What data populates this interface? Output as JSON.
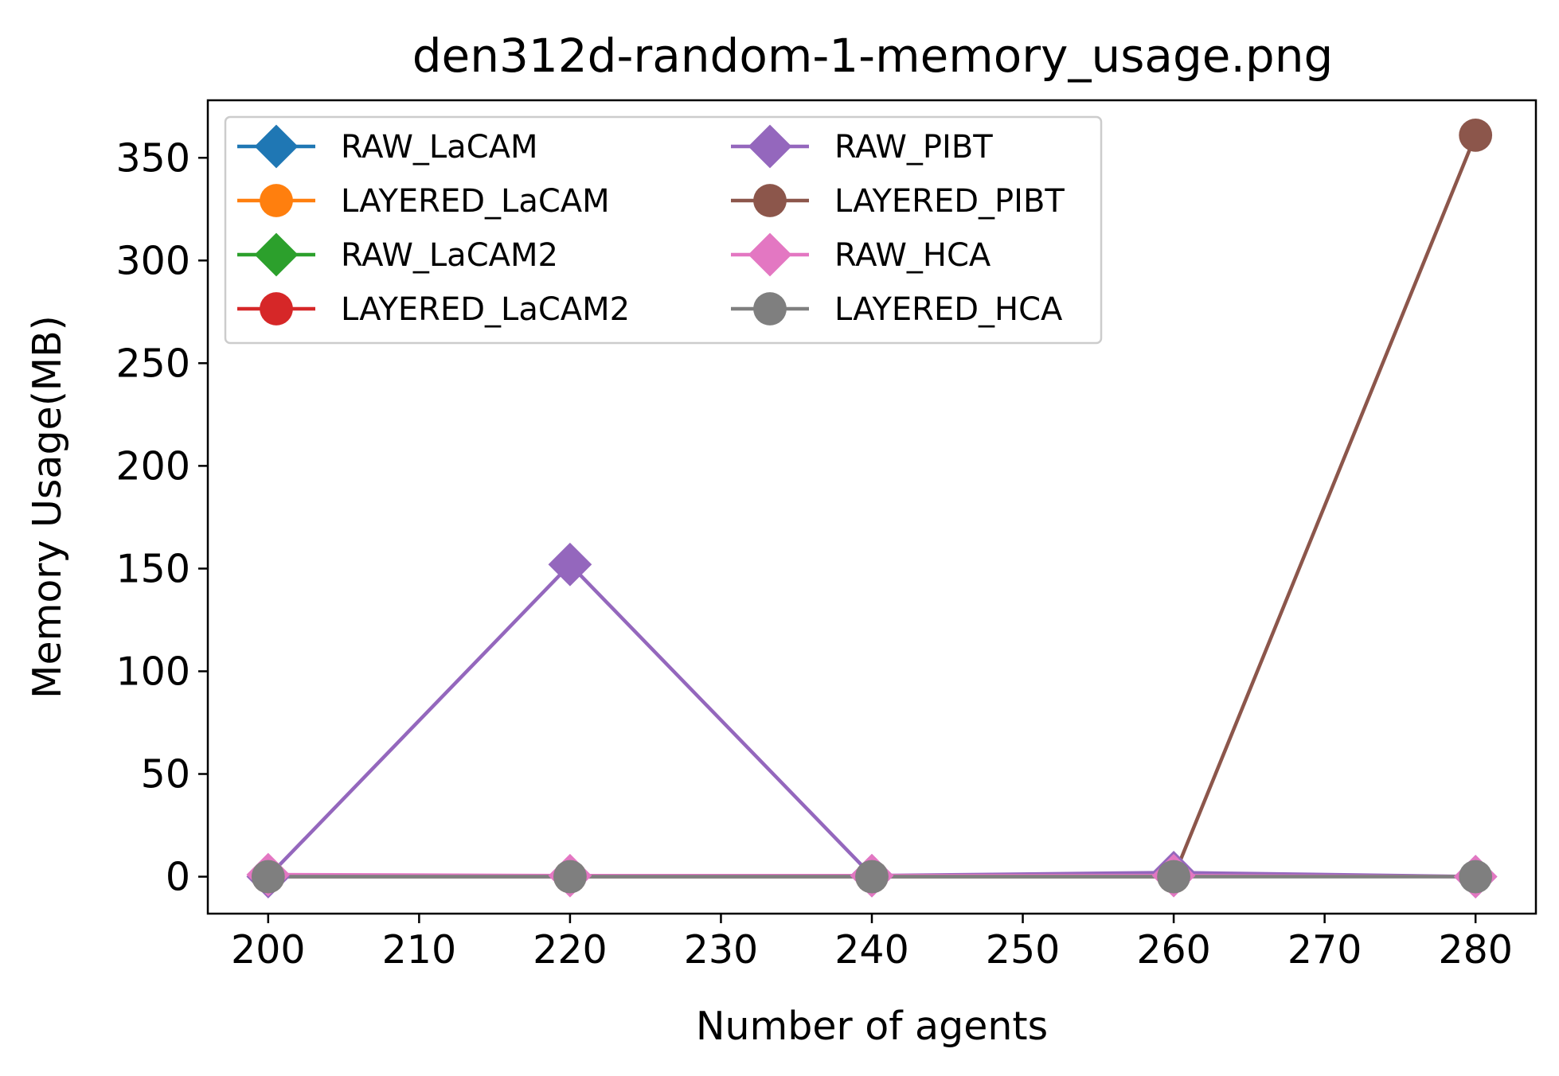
{
  "chart_data": {
    "type": "line",
    "title": "den312d-random-1-memory_usage.png",
    "xlabel": "Number of agents",
    "ylabel": "Memory Usage(MB)",
    "x": [
      200,
      220,
      240,
      260,
      280
    ],
    "xticks": [
      200,
      210,
      220,
      230,
      240,
      250,
      260,
      270,
      280
    ],
    "yticks": [
      0,
      50,
      100,
      150,
      200,
      250,
      300,
      350
    ],
    "xlim": [
      196,
      284
    ],
    "ylim": [
      -18,
      378
    ],
    "legend_placement": "top-left",
    "legend_columns": 2,
    "grid": false,
    "series": [
      {
        "name": "RAW_LaCAM",
        "color": "#1f77b4",
        "marker": "diamond",
        "values": [
          null,
          null,
          null,
          null,
          null
        ]
      },
      {
        "name": "LAYERED_LaCAM",
        "color": "#ff7f0e",
        "marker": "circle",
        "values": [
          null,
          null,
          null,
          null,
          null
        ]
      },
      {
        "name": "RAW_LaCAM2",
        "color": "#2ca02c",
        "marker": "diamond",
        "values": [
          null,
          null,
          null,
          null,
          null
        ]
      },
      {
        "name": "LAYERED_LaCAM2",
        "color": "#d62728",
        "marker": "circle",
        "values": [
          null,
          null,
          null,
          null,
          null
        ]
      },
      {
        "name": "RAW_PIBT",
        "color": "#9467bd",
        "marker": "diamond",
        "values": [
          0,
          152,
          0.5,
          2,
          0
        ]
      },
      {
        "name": "LAYERED_PIBT",
        "color": "#8c564b",
        "marker": "circle",
        "values": [
          0,
          0,
          0,
          0,
          361
        ]
      },
      {
        "name": "RAW_HCA",
        "color": "#e377c2",
        "marker": "diamond",
        "values": [
          1,
          0.5,
          0.5,
          0.5,
          0
        ]
      },
      {
        "name": "LAYERED_HCA",
        "color": "#7f7f7f",
        "marker": "circle",
        "values": [
          0,
          0,
          0,
          0,
          0
        ]
      }
    ]
  }
}
